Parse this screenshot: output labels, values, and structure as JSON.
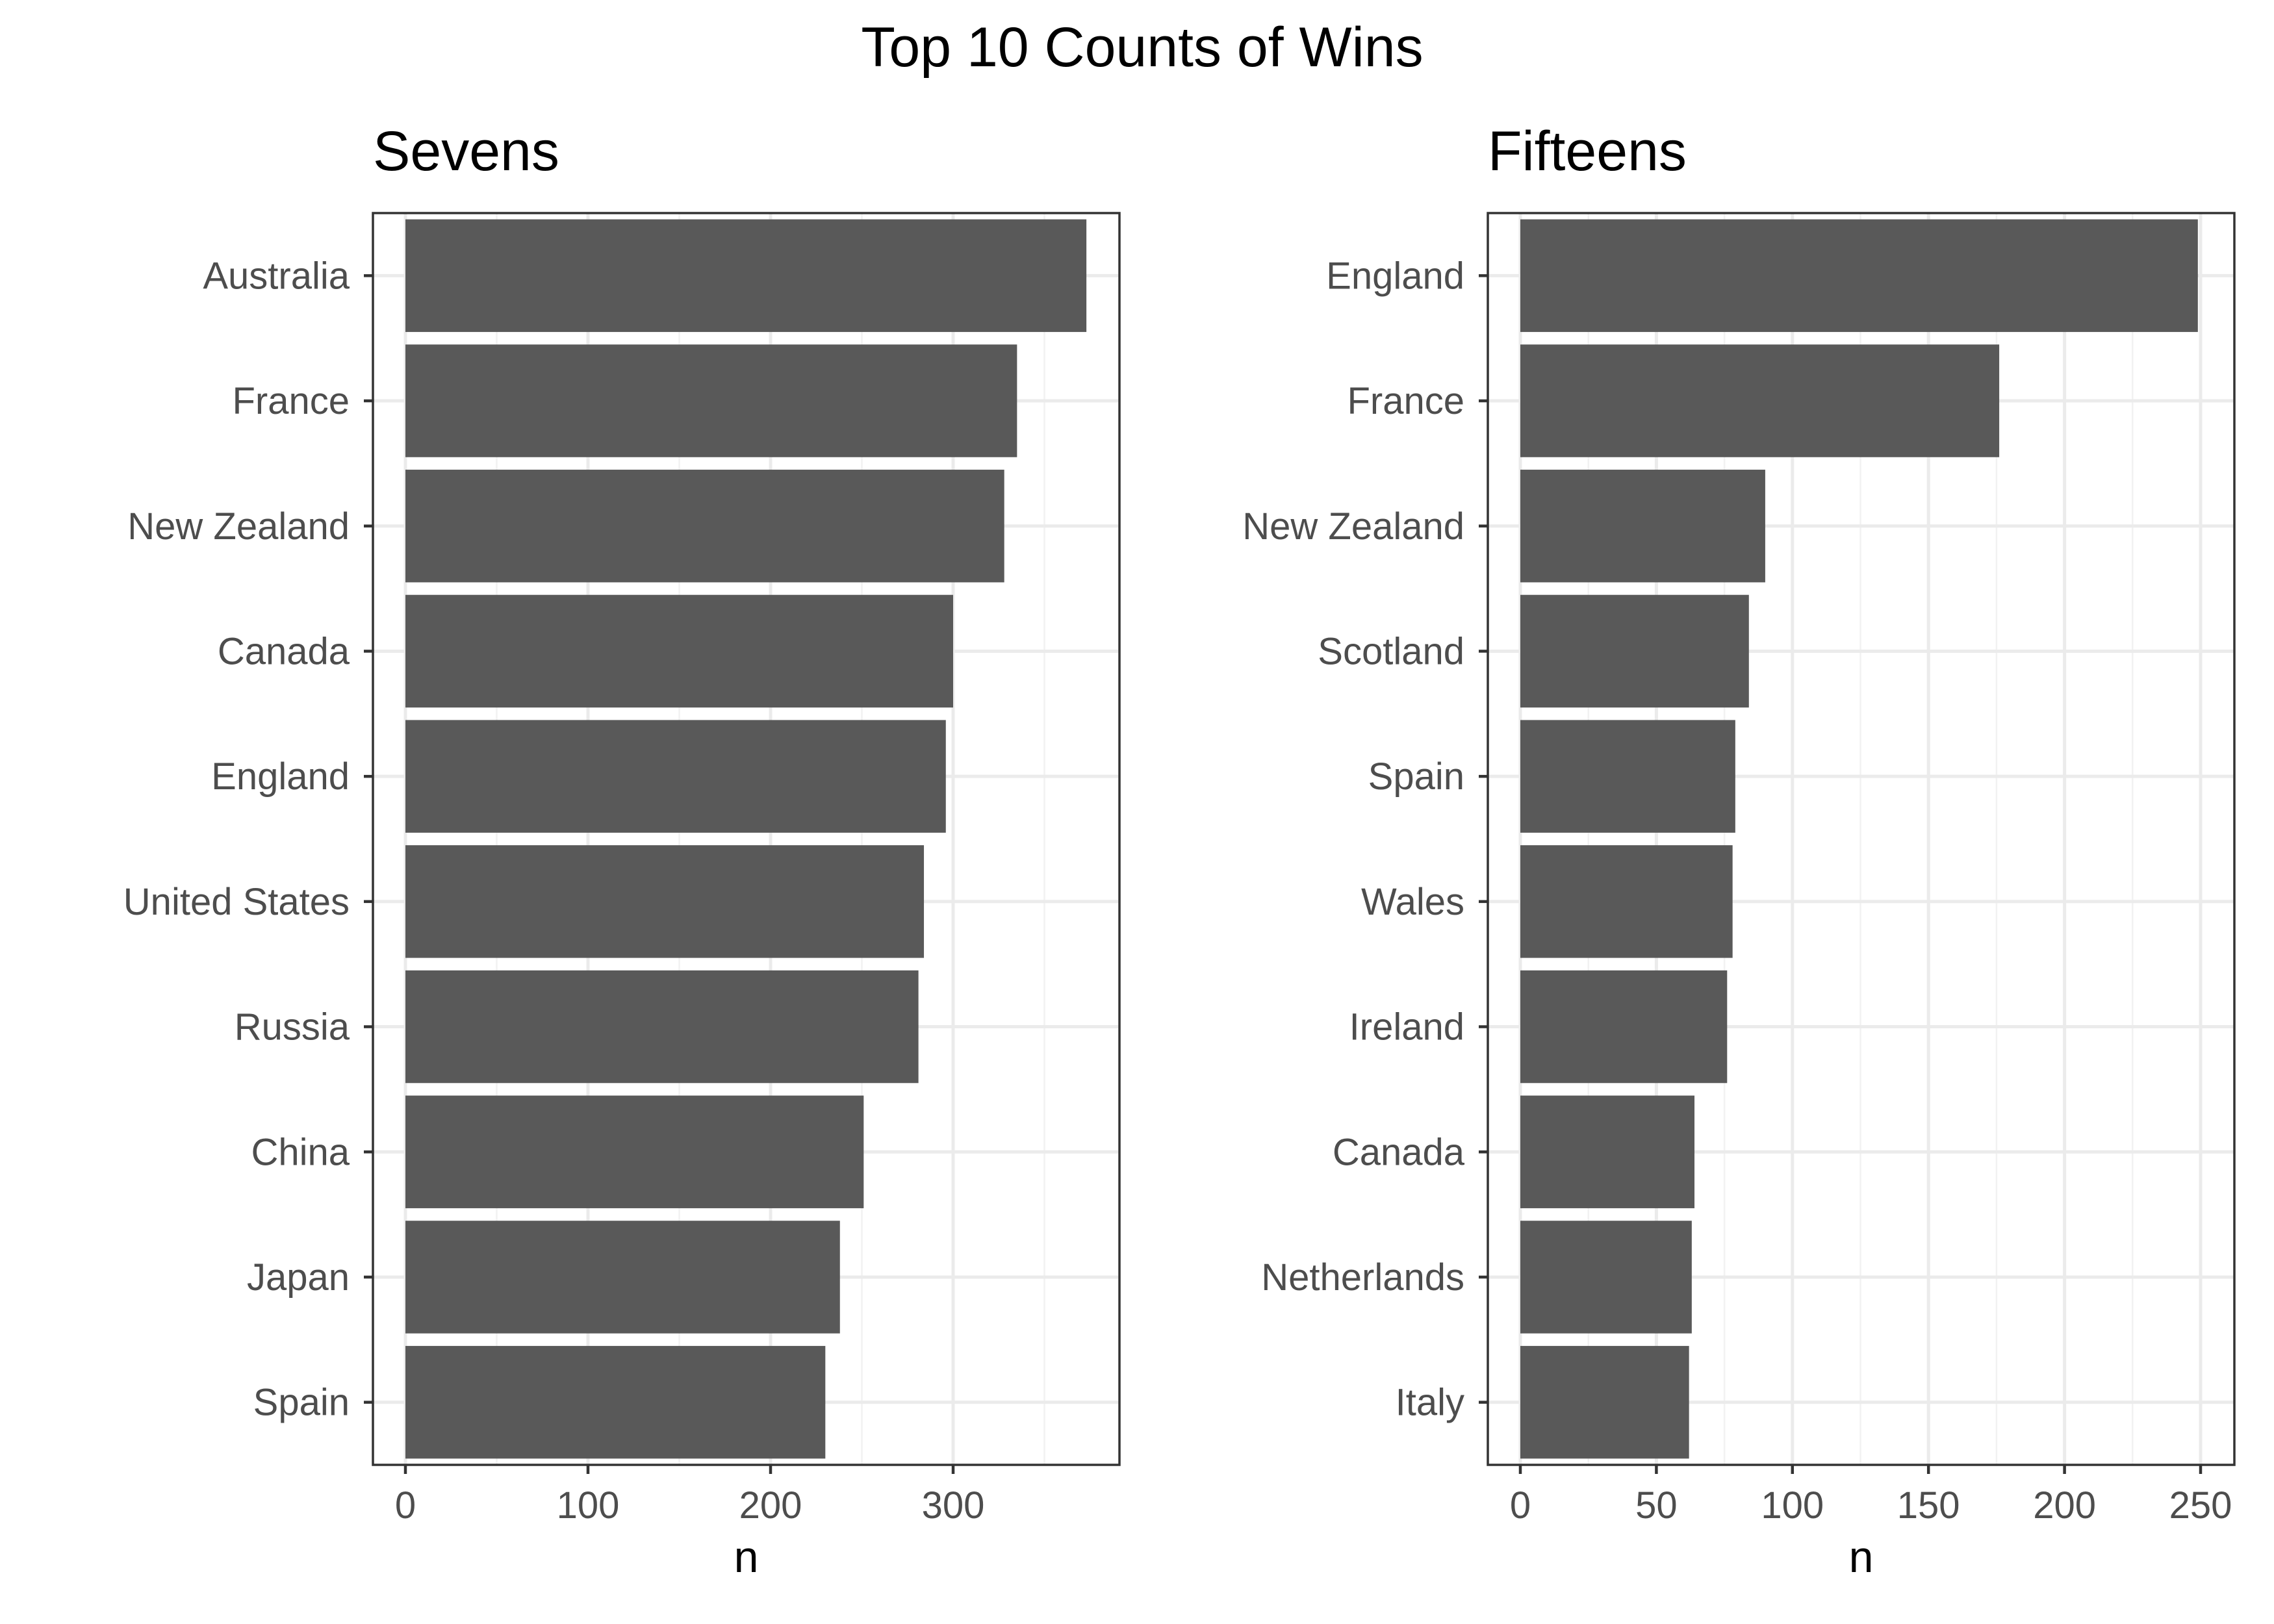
{
  "title": "Top 10 Counts of Wins",
  "bar_color": "#595959",
  "chart_data": [
    {
      "type": "bar",
      "orientation": "horizontal",
      "title": "Sevens",
      "xlabel": "n",
      "ylabel": "",
      "xlim": [
        0,
        390
      ],
      "xticks": [
        0,
        100,
        200,
        300
      ],
      "grid": true,
      "categories": [
        "Australia",
        "France",
        "New Zealand",
        "Canada",
        "England",
        "United States",
        "Russia",
        "China",
        "Japan",
        "Spain"
      ],
      "values": [
        373,
        335,
        328,
        300,
        296,
        284,
        281,
        251,
        238,
        230
      ]
    },
    {
      "type": "bar",
      "orientation": "horizontal",
      "title": "Fifteens",
      "xlabel": "n",
      "ylabel": "",
      "xlim": [
        0,
        262
      ],
      "xticks": [
        0,
        50,
        100,
        150,
        200,
        250
      ],
      "grid": true,
      "categories": [
        "England",
        "France",
        "New Zealand",
        "Scotland",
        "Spain",
        "Wales",
        "Ireland",
        "Canada",
        "Netherlands",
        "Italy"
      ],
      "values": [
        249,
        176,
        90,
        84,
        79,
        78,
        76,
        64,
        63,
        62
      ]
    }
  ]
}
